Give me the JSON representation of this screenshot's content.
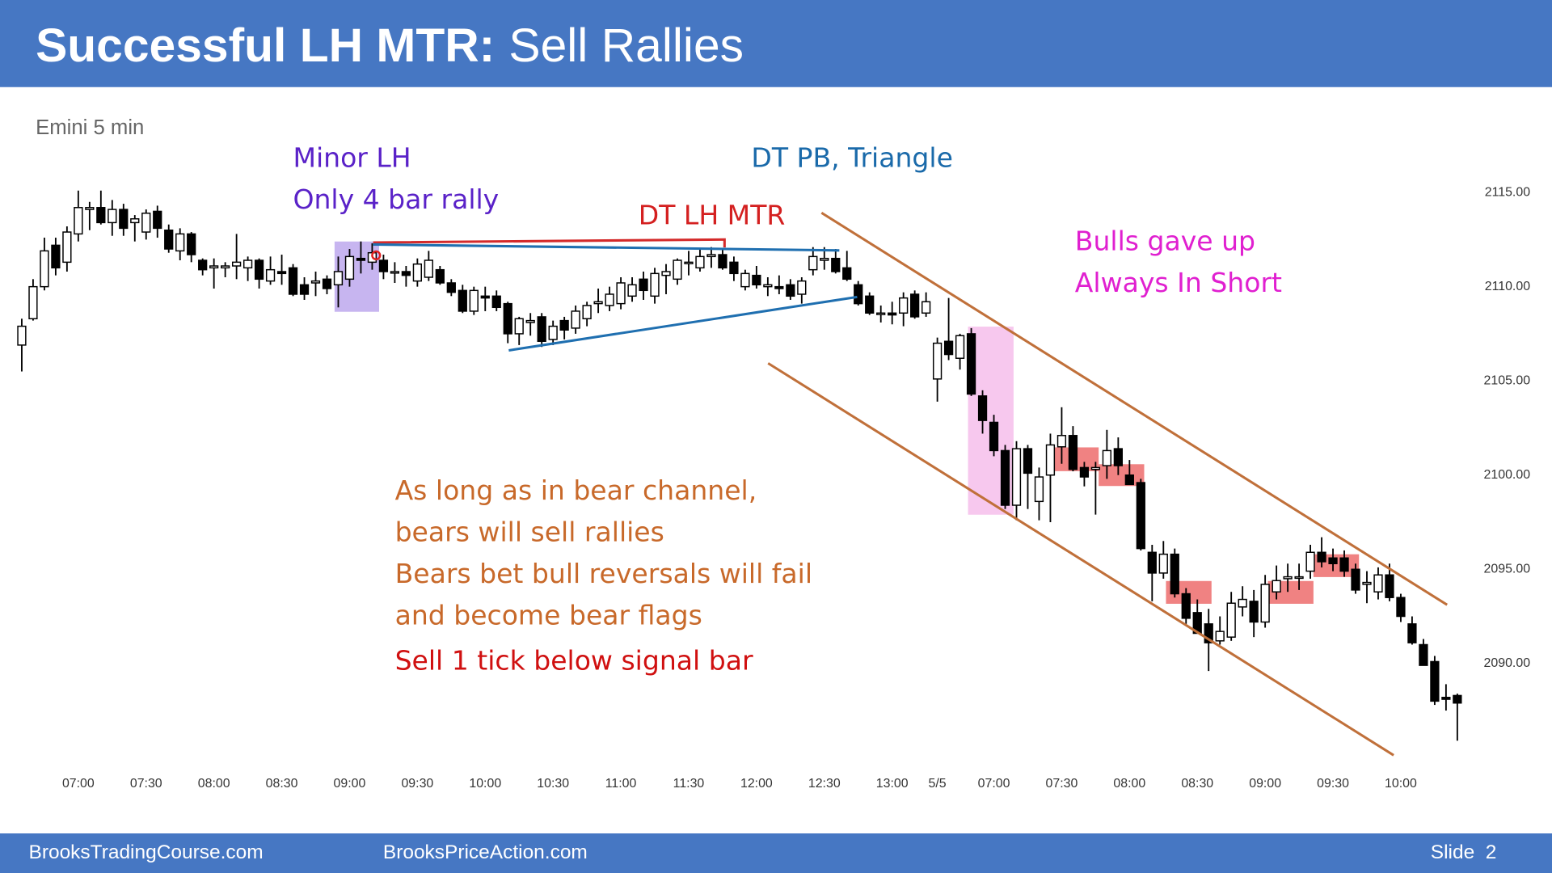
{
  "header": {
    "title": "Successful LH MTR:",
    "subtitle": "Sell Rallies"
  },
  "footer": {
    "left": "BrooksTradingCourse.com",
    "center": "BrooksPriceAction.com",
    "slide": "Slide  2"
  },
  "chart_data": {
    "type": "candlestick",
    "subtitle": "Emini 5 min",
    "open": [
      2106.9,
      2108.3,
      2110,
      2112.2,
      2111.3,
      2112.8,
      2114.1,
      2114.2,
      2113.4,
      2114.1,
      2113.4,
      2112.9,
      2114,
      2113,
      2111.9,
      2112.8,
      2111.4,
      2111,
      2111,
      2111.1,
      2111,
      2111.4,
      2110.3,
      2110.8,
      2111,
      2110.1,
      2110.2,
      2110.4,
      2110.1,
      2110.4,
      2111.5,
      2111.3,
      2111.4,
      2110.8,
      2110.8,
      2110.3,
      2110.5,
      2110.9,
      2110.2,
      2109.8,
      2108.7,
      2109.5,
      2109.5,
      2109.1,
      2107.5,
      2108.1,
      2108.4,
      2107.2,
      2108.2,
      2107.8,
      2108.3,
      2109.1,
      2109,
      2109.1,
      2109.5,
      2110.4,
      2109.5,
      2110.6,
      2110.4,
      2111.3,
      2111,
      2111.6,
      2111.7,
      2111.3,
      2110,
      2110.6,
      2110,
      2110,
      2110.1,
      2109.6,
      2110.9,
      2111.4,
      2111.5,
      2111,
      2110.1,
      2109.5,
      2108.6,
      2108.6,
      2108.6,
      2109.6,
      2108.6,
      2105.1,
      2107.1,
      2106.2,
      2107.5,
      2104.2,
      2102.8,
      2101.3,
      2098.4,
      2101.4,
      2098.6,
      2100,
      2101.5,
      2102.1,
      2100.4,
      2100.3,
      2100.5,
      2101.4,
      2100,
      2099.6,
      2095.9,
      2094.8,
      2095.8,
      2093.7,
      2092.7,
      2092.1,
      2091.2,
      2091.4,
      2093,
      2093.3,
      2092.2,
      2093.8,
      2094.5,
      2094.6,
      2094.9,
      2095.9,
      2095.6,
      2095.6,
      2095,
      2094.2,
      2093.8,
      2094.7,
      2093.5,
      2092.1,
      2091,
      2090.1,
      2088.2,
      2088.3
    ],
    "high": [
      2108.3,
      2110.4,
      2112.6,
      2112.6,
      2113.2,
      2115.1,
      2114.5,
      2115.1,
      2114.6,
      2114.4,
      2113.8,
      2114.1,
      2114.3,
      2113.3,
      2113.1,
      2112.9,
      2111.5,
      2111.5,
      2111.3,
      2112.8,
      2111.6,
      2111.5,
      2111.6,
      2111.7,
      2111.2,
      2110.5,
      2110.8,
      2110.6,
      2111.6,
      2112,
      2112.4,
      2112.3,
      2111.7,
      2111.3,
      2111.1,
      2111.5,
      2111.9,
      2111.1,
      2110.4,
      2110.1,
      2110,
      2110,
      2109.8,
      2109.2,
      2108.4,
      2108.6,
      2108.6,
      2108.2,
      2108.4,
      2109,
      2109.2,
      2109.9,
      2110,
      2110.5,
      2110.5,
      2110.8,
      2111,
      2111.2,
      2111.5,
      2111.9,
      2112,
      2112.1,
      2112,
      2111.6,
      2110.9,
      2111.1,
      2110.5,
      2110.6,
      2110.4,
      2110.5,
      2112.1,
      2112.1,
      2112,
      2111.9,
      2110.3,
      2109.7,
      2109,
      2109.2,
      2109.7,
      2109.8,
      2109.7,
      2107.3,
      2109.4,
      2107.5,
      2107.8,
      2104.5,
      2103.2,
      2101.6,
      2101.8,
      2101.6,
      2100.4,
      2102.2,
      2103.6,
      2102.6,
      2100.7,
      2100.7,
      2102.4,
      2102,
      2100.8,
      2099.8,
      2096.3,
      2096.5,
      2096.1,
      2094,
      2093.4,
      2092.9,
      2092.5,
      2093.8,
      2094.1,
      2093.9,
      2094.7,
      2095.2,
      2095.3,
      2095.3,
      2096.3,
      2096.7,
      2096.1,
      2096,
      2095.3,
      2094.9,
      2095.1,
      2095.3,
      2093.7,
      2092.5,
      2091.3,
      2090.4,
      2088.9,
      2088.4
    ],
    "low": [
      2105.5,
      2108.2,
      2109.8,
      2110.6,
      2110.8,
      2112.4,
      2113,
      2113.3,
      2112.7,
      2112.7,
      2112.4,
      2112.5,
      2112.6,
      2111.8,
      2111.4,
      2111.3,
      2110.6,
      2109.9,
      2110.5,
      2110.4,
      2110.3,
      2109.9,
      2110.1,
      2110.1,
      2109.5,
      2109.3,
      2109.5,
      2109.6,
      2108.9,
      2110,
      2110.7,
      2110.9,
      2110.4,
      2110.2,
      2110,
      2110,
      2110.3,
      2110.1,
      2109.5,
      2108.6,
      2108.5,
      2108.7,
      2108.7,
      2107,
      2106.9,
      2107.4,
      2106.8,
      2106.9,
      2107.2,
      2107.5,
      2107.9,
      2108.6,
      2108.7,
      2108.8,
      2109.2,
      2109.3,
      2109.1,
      2109.6,
      2110.1,
      2110.6,
      2110.8,
      2111,
      2110.9,
      2110.3,
      2109.8,
      2109.9,
      2109.5,
      2109.6,
      2109.3,
      2109.1,
      2110.6,
      2110.9,
      2110.7,
      2110.3,
      2109,
      2108.5,
      2108.1,
      2108,
      2107.9,
      2108.3,
      2108.4,
      2103.9,
      2106.1,
      2105.6,
      2104.2,
      2102.2,
      2101,
      2098.2,
      2097.6,
      2098.2,
      2097.6,
      2097.5,
      2100.6,
      2100.2,
      2099.4,
      2097.9,
      2099.8,
      2100,
      2099.5,
      2096,
      2093.3,
      2094.5,
      2093.5,
      2092.1,
      2091.6,
      2089.6,
      2091,
      2091.2,
      2092.5,
      2091.4,
      2091.9,
      2093.4,
      2093.8,
      2093.9,
      2094.5,
      2095.1,
      2094.9,
      2094.6,
      2093.7,
      2093.2,
      2093.4,
      2093.3,
      2092.2,
      2091,
      2089.9,
      2087.8,
      2087.5,
      2085.9
    ],
    "close": [
      2107.9,
      2110,
      2111.9,
      2111,
      2112.9,
      2114.2,
      2114.2,
      2113.4,
      2114.1,
      2113.1,
      2113.6,
      2113.9,
      2113.1,
      2112,
      2112.8,
      2111.7,
      2110.9,
      2111.1,
      2111.1,
      2111.3,
      2111.4,
      2110.4,
      2110.9,
      2110.7,
      2109.6,
      2109.6,
      2110.3,
      2109.9,
      2110.8,
      2111.6,
      2111.4,
      2111.8,
      2110.8,
      2110.8,
      2110.6,
      2111.2,
      2111.4,
      2110.2,
      2109.7,
      2108.7,
      2109.8,
      2109.4,
      2108.9,
      2107.5,
      2108.3,
      2108.2,
      2107.1,
      2107.9,
      2107.7,
      2108.7,
      2109,
      2109.2,
      2109.6,
      2110.2,
      2110.1,
      2109.8,
      2110.7,
      2110.8,
      2111.4,
      2111.3,
      2111.6,
      2111.7,
      2111,
      2110.7,
      2110.7,
      2110.1,
      2110.1,
      2109.9,
      2109.5,
      2110.3,
      2111.6,
      2111.5,
      2110.8,
      2110.4,
      2109.1,
      2108.6,
      2108.6,
      2108.5,
      2109.4,
      2108.4,
      2109.2,
      2107,
      2106.4,
      2107.4,
      2104.3,
      2102.9,
      2101.3,
      2098.4,
      2101.4,
      2100.1,
      2099.9,
      2101.6,
      2102.1,
      2100.3,
      2099.9,
      2100.4,
      2101.3,
      2100.5,
      2099.5,
      2096.1,
      2094.8,
      2095.8,
      2093.7,
      2092.4,
      2091.6,
      2091.1,
      2091.7,
      2093.2,
      2093.4,
      2092.2,
      2094.2,
      2094.4,
      2094.6,
      2094.6,
      2095.9,
      2095.4,
      2095.3,
      2094.9,
      2093.9,
      2094.3,
      2094.7,
      2093.5,
      2092.5,
      2091.1,
      2089.9,
      2088,
      2088.1,
      2087.9
    ],
    "xticks": [
      {
        "value": 5,
        "label": "07:00"
      },
      {
        "value": 11,
        "label": "07:30"
      },
      {
        "value": 17,
        "label": "08:00"
      },
      {
        "value": 23,
        "label": "08:30"
      },
      {
        "value": 29,
        "label": "09:00"
      },
      {
        "value": 35,
        "label": "09:30"
      },
      {
        "value": 41,
        "label": "10:00"
      },
      {
        "value": 47,
        "label": "10:30"
      },
      {
        "value": 53,
        "label": "11:00"
      },
      {
        "value": 59,
        "label": "11:30"
      },
      {
        "value": 65,
        "label": "12:00"
      },
      {
        "value": 71,
        "label": "12:30"
      },
      {
        "value": 77,
        "label": "13:00"
      },
      {
        "value": 81,
        "label": "5/5"
      },
      {
        "value": 86,
        "label": "07:00"
      },
      {
        "value": 92,
        "label": "07:30"
      },
      {
        "value": 98,
        "label": "08:00"
      },
      {
        "value": 104,
        "label": "08:30"
      },
      {
        "value": 110,
        "label": "09:00"
      },
      {
        "value": 116,
        "label": "09:30"
      },
      {
        "value": 122,
        "label": "10:00"
      }
    ],
    "ylim": [
      2084.5,
      2119.7
    ],
    "yticks": [
      {
        "value": 2090,
        "label": "2090.00"
      },
      {
        "value": 2095,
        "label": "2095.00"
      },
      {
        "value": 2100,
        "label": "2100.00"
      },
      {
        "value": 2105,
        "label": "2105.00"
      },
      {
        "value": 2110,
        "label": "2110.00"
      },
      {
        "value": 2115,
        "label": "2115.00"
      }
    ],
    "annotations": {
      "minor_lh": [
        "Minor LH",
        "Only 4 bar rally"
      ],
      "dt_pb": "DT PB, Triangle",
      "dt_lh_mtr": "DT LH MTR",
      "bulls": [
        "Bulls gave up",
        "Always In Short"
      ],
      "bear_channel": [
        "As long as in bear channel,",
        "bears will sell rallies",
        "Bears bet bull reversals will fail",
        "and become bear flags"
      ],
      "sell": "Sell 1 tick below signal bar"
    }
  }
}
